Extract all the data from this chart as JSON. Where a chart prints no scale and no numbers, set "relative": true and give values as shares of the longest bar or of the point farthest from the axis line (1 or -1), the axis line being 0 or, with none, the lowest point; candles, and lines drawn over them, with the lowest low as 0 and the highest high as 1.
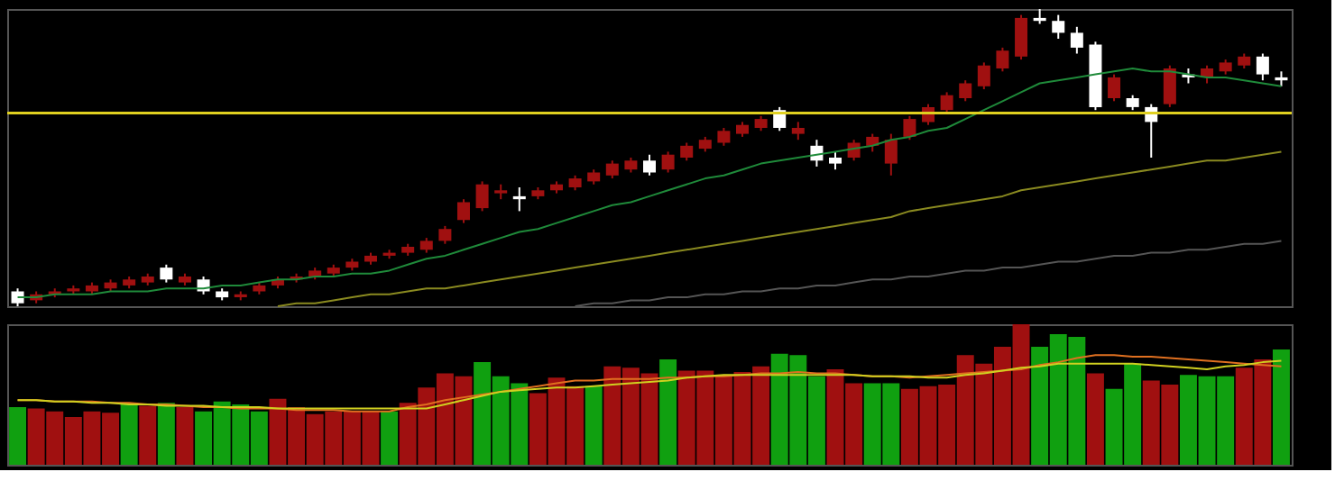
{
  "chart_data": [
    {
      "type": "candlestick",
      "relative": true,
      "categories": [
        null,
        null,
        null,
        null,
        null,
        null,
        null,
        null,
        null,
        null,
        null,
        null,
        null,
        null,
        null,
        null,
        null,
        null,
        null,
        null,
        null,
        null,
        null,
        null,
        null,
        null,
        null,
        null,
        null,
        null,
        null,
        null,
        null,
        null,
        null,
        null,
        null,
        null,
        null,
        null,
        null,
        null,
        null,
        null,
        null,
        null,
        null,
        null,
        null,
        null,
        null,
        null,
        null,
        null,
        null,
        null,
        null,
        null,
        null,
        null,
        null,
        null,
        null,
        null,
        null,
        null,
        null,
        null,
        null
      ],
      "ohlc": [
        [
          0.05,
          0.06,
          0,
          0.01
        ],
        [
          0.02,
          0.05,
          0.01,
          0.04
        ],
        [
          0.04,
          0.06,
          0.03,
          0.05
        ],
        [
          0.05,
          0.07,
          0.04,
          0.06
        ],
        [
          0.05,
          0.08,
          0.04,
          0.07
        ],
        [
          0.06,
          0.09,
          0.05,
          0.08
        ],
        [
          0.07,
          0.1,
          0.06,
          0.09
        ],
        [
          0.08,
          0.11,
          0.07,
          0.1
        ],
        [
          0.13,
          0.14,
          0.08,
          0.09
        ],
        [
          0.08,
          0.11,
          0.07,
          0.1
        ],
        [
          0.09,
          0.1,
          0.04,
          0.05
        ],
        [
          0.05,
          0.06,
          0.02,
          0.03
        ],
        [
          0.03,
          0.05,
          0.02,
          0.04
        ],
        [
          0.05,
          0.08,
          0.04,
          0.07
        ],
        [
          0.07,
          0.1,
          0.06,
          0.09
        ],
        [
          0.09,
          0.11,
          0.08,
          0.1
        ],
        [
          0.1,
          0.13,
          0.09,
          0.12
        ],
        [
          0.11,
          0.14,
          0.1,
          0.13
        ],
        [
          0.13,
          0.16,
          0.12,
          0.15
        ],
        [
          0.15,
          0.18,
          0.14,
          0.17
        ],
        [
          0.17,
          0.19,
          0.16,
          0.18
        ],
        [
          0.18,
          0.21,
          0.17,
          0.2
        ],
        [
          0.19,
          0.23,
          0.18,
          0.22
        ],
        [
          0.22,
          0.27,
          0.21,
          0.26
        ],
        [
          0.29,
          0.36,
          0.28,
          0.35
        ],
        [
          0.33,
          0.42,
          0.32,
          0.41
        ],
        [
          0.38,
          0.41,
          0.36,
          0.39
        ],
        [
          0.37,
          0.4,
          0.32,
          0.36
        ],
        [
          0.37,
          0.4,
          0.36,
          0.39
        ],
        [
          0.39,
          0.42,
          0.38,
          0.41
        ],
        [
          0.4,
          0.44,
          0.39,
          0.43
        ],
        [
          0.42,
          0.46,
          0.41,
          0.45
        ],
        [
          0.44,
          0.49,
          0.43,
          0.48
        ],
        [
          0.46,
          0.5,
          0.45,
          0.49
        ],
        [
          0.49,
          0.51,
          0.44,
          0.45
        ],
        [
          0.46,
          0.52,
          0.45,
          0.51
        ],
        [
          0.5,
          0.55,
          0.49,
          0.54
        ],
        [
          0.53,
          0.57,
          0.52,
          0.56
        ],
        [
          0.55,
          0.6,
          0.54,
          0.59
        ],
        [
          0.58,
          0.62,
          0.57,
          0.61
        ],
        [
          0.6,
          0.64,
          0.59,
          0.63
        ],
        [
          0.66,
          0.67,
          0.59,
          0.6
        ],
        [
          0.58,
          0.62,
          0.56,
          0.6
        ],
        [
          0.54,
          0.56,
          0.47,
          0.49
        ],
        [
          0.5,
          0.52,
          0.46,
          0.48
        ],
        [
          0.5,
          0.56,
          0.49,
          0.55
        ],
        [
          0.54,
          0.58,
          0.52,
          0.57
        ],
        [
          0.48,
          0.58,
          0.44,
          0.56
        ],
        [
          0.57,
          0.64,
          0.56,
          0.63
        ],
        [
          0.62,
          0.68,
          0.61,
          0.67
        ],
        [
          0.66,
          0.72,
          0.65,
          0.71
        ],
        [
          0.7,
          0.76,
          0.69,
          0.75
        ],
        [
          0.74,
          0.82,
          0.73,
          0.81
        ],
        [
          0.8,
          0.87,
          0.79,
          0.86
        ],
        [
          0.84,
          0.98,
          0.83,
          0.97
        ],
        [
          0.97,
          1,
          0.95,
          0.96
        ],
        [
          0.96,
          0.98,
          0.9,
          0.92
        ],
        [
          0.92,
          0.94,
          0.85,
          0.87
        ],
        [
          0.88,
          0.89,
          0.66,
          0.67
        ],
        [
          0.7,
          0.78,
          0.69,
          0.77
        ],
        [
          0.7,
          0.71,
          0.66,
          0.67
        ],
        [
          0.67,
          0.68,
          0.5,
          0.62
        ],
        [
          0.68,
          0.81,
          0.67,
          0.8
        ],
        [
          0.78,
          0.8,
          0.75,
          0.77
        ],
        [
          0.77,
          0.81,
          0.75,
          0.8
        ],
        [
          0.79,
          0.83,
          0.78,
          0.82
        ],
        [
          0.81,
          0.85,
          0.8,
          0.84
        ],
        [
          0.84,
          0.85,
          0.76,
          0.78
        ],
        [
          0.77,
          0.79,
          0.74,
          0.76
        ]
      ],
      "colors": [
        "#ffffff",
        "#a01010",
        "#a01010",
        "#a01010",
        "#a01010",
        "#a01010",
        "#a01010",
        "#a01010",
        "#ffffff",
        "#a01010",
        "#ffffff",
        "#ffffff",
        "#a01010",
        "#a01010",
        "#a01010",
        "#a01010",
        "#a01010",
        "#a01010",
        "#a01010",
        "#a01010",
        "#a01010",
        "#a01010",
        "#a01010",
        "#a01010",
        "#a01010",
        "#a01010",
        "#a01010",
        "#ffffff",
        "#a01010",
        "#a01010",
        "#a01010",
        "#a01010",
        "#a01010",
        "#a01010",
        "#ffffff",
        "#a01010",
        "#a01010",
        "#a01010",
        "#a01010",
        "#a01010",
        "#a01010",
        "#ffffff",
        "#a01010",
        "#ffffff",
        "#ffffff",
        "#a01010",
        "#a01010",
        "#a01010",
        "#a01010",
        "#a01010",
        "#a01010",
        "#a01010",
        "#a01010",
        "#a01010",
        "#a01010",
        "#ffffff",
        "#ffffff",
        "#ffffff",
        "#ffffff",
        "#a01010",
        "#ffffff",
        "#ffffff",
        "#a01010",
        "#ffffff",
        "#a01010",
        "#a01010",
        "#a01010",
        "#ffffff",
        "#ffffff"
      ],
      "series": [
        {
          "type": "line",
          "color": "#1f8a3a",
          "values": [
            0.03,
            0.03,
            0.04,
            0.04,
            0.04,
            0.05,
            0.05,
            0.05,
            0.06,
            0.06,
            0.06,
            0.07,
            0.07,
            0.08,
            0.09,
            0.09,
            0.1,
            0.1,
            0.11,
            0.11,
            0.12,
            0.14,
            0.16,
            0.17,
            0.19,
            0.21,
            0.23,
            0.25,
            0.26,
            0.28,
            0.3,
            0.32,
            0.34,
            0.35,
            0.37,
            0.39,
            0.41,
            0.43,
            0.44,
            0.46,
            0.48,
            0.49,
            0.5,
            0.51,
            0.52,
            0.53,
            0.54,
            0.56,
            0.57,
            0.59,
            0.6,
            0.63,
            0.66,
            0.69,
            0.72,
            0.75,
            0.76,
            0.77,
            0.78,
            0.79,
            0.8,
            0.79,
            0.79,
            0.78,
            0.77,
            0.77,
            0.76,
            0.75,
            0.74
          ]
        },
        {
          "type": "line",
          "color": "#8a8a20",
          "values": [
            null,
            null,
            null,
            null,
            null,
            null,
            null,
            null,
            null,
            null,
            null,
            null,
            null,
            null,
            0,
            0.01,
            0.01,
            0.02,
            0.03,
            0.04,
            0.04,
            0.05,
            0.06,
            0.06,
            0.07,
            0.08,
            0.09,
            0.1,
            0.11,
            0.12,
            0.13,
            0.14,
            0.15,
            0.16,
            0.17,
            0.18,
            0.19,
            0.2,
            0.21,
            0.22,
            0.23,
            0.24,
            0.25,
            0.26,
            0.27,
            0.28,
            0.29,
            0.3,
            0.32,
            0.33,
            0.34,
            0.35,
            0.36,
            0.37,
            0.39,
            0.4,
            0.41,
            0.42,
            0.43,
            0.44,
            0.45,
            0.46,
            0.47,
            0.48,
            0.49,
            0.49,
            0.5,
            0.51,
            0.52
          ]
        },
        {
          "type": "line",
          "color": "#555555",
          "values": [
            null,
            null,
            null,
            null,
            null,
            null,
            null,
            null,
            null,
            null,
            null,
            null,
            null,
            null,
            null,
            null,
            null,
            null,
            null,
            null,
            null,
            null,
            null,
            null,
            null,
            null,
            null,
            null,
            null,
            null,
            0,
            0.01,
            0.01,
            0.02,
            0.02,
            0.03,
            0.03,
            0.04,
            0.04,
            0.05,
            0.05,
            0.06,
            0.06,
            0.07,
            0.07,
            0.08,
            0.09,
            0.09,
            0.1,
            0.1,
            0.11,
            0.12,
            0.12,
            0.13,
            0.13,
            0.14,
            0.15,
            0.15,
            0.16,
            0.17,
            0.17,
            0.18,
            0.18,
            0.19,
            0.19,
            0.2,
            0.21,
            0.21,
            0.22
          ]
        }
      ],
      "ref_lines": [
        {
          "axis": "y",
          "value": 0.65,
          "color": "#e0d020"
        }
      ]
    },
    {
      "type": "bar",
      "relative": true,
      "categories": [
        null,
        null,
        null,
        null,
        null,
        null,
        null,
        null,
        null,
        null,
        null,
        null,
        null,
        null,
        null,
        null,
        null,
        null,
        null,
        null,
        null,
        null,
        null,
        null,
        null,
        null,
        null,
        null,
        null,
        null,
        null,
        null,
        null,
        null,
        null,
        null,
        null,
        null,
        null,
        null,
        null,
        null,
        null,
        null,
        null,
        null,
        null,
        null,
        null,
        null,
        null,
        null,
        null,
        null,
        null,
        null,
        null,
        null,
        null,
        null,
        null,
        null,
        null,
        null,
        null,
        null,
        null,
        null,
        null
      ],
      "values": [
        0.41,
        0.4,
        0.38,
        0.34,
        0.38,
        0.37,
        0.44,
        0.42,
        0.44,
        0.41,
        0.38,
        0.45,
        0.43,
        0.38,
        0.47,
        0.41,
        0.36,
        0.38,
        0.38,
        0.38,
        0.38,
        0.44,
        0.55,
        0.65,
        0.63,
        0.73,
        0.63,
        0.58,
        0.51,
        0.62,
        0.56,
        0.56,
        0.7,
        0.69,
        0.65,
        0.75,
        0.67,
        0.67,
        0.64,
        0.66,
        0.7,
        0.79,
        0.78,
        0.63,
        0.68,
        0.58,
        0.58,
        0.58,
        0.54,
        0.56,
        0.57,
        0.78,
        0.72,
        0.84,
        1,
        0.84,
        0.93,
        0.91,
        0.65,
        0.54,
        0.72,
        0.6,
        0.57,
        0.64,
        0.63,
        0.63,
        0.69,
        0.75,
        0.82
      ],
      "colors": [
        "#10a010",
        "#a01010",
        "#a01010",
        "#a01010",
        "#a01010",
        "#a01010",
        "#10a010",
        "#a01010",
        "#10a010",
        "#a01010",
        "#10a010",
        "#10a010",
        "#10a010",
        "#10a010",
        "#a01010",
        "#a01010",
        "#a01010",
        "#a01010",
        "#a01010",
        "#a01010",
        "#10a010",
        "#a01010",
        "#a01010",
        "#a01010",
        "#a01010",
        "#10a010",
        "#10a010",
        "#10a010",
        "#a01010",
        "#a01010",
        "#a01010",
        "#10a010",
        "#a01010",
        "#a01010",
        "#a01010",
        "#10a010",
        "#a01010",
        "#a01010",
        "#a01010",
        "#a01010",
        "#a01010",
        "#10a010",
        "#10a010",
        "#10a010",
        "#a01010",
        "#a01010",
        "#10a010",
        "#10a010",
        "#a01010",
        "#a01010",
        "#a01010",
        "#a01010",
        "#a01010",
        "#a01010",
        "#a01010",
        "#10a010",
        "#10a010",
        "#10a010",
        "#a01010",
        "#10a010",
        "#10a010",
        "#a01010",
        "#a01010",
        "#10a010",
        "#10a010",
        "#10a010",
        "#a01010",
        "#a01010",
        "#10a010"
      ],
      "series": [
        {
          "type": "line",
          "color": "#e07020",
          "values": [
            0.46,
            0.46,
            0.45,
            0.45,
            0.45,
            0.44,
            0.44,
            0.43,
            0.43,
            0.42,
            0.41,
            0.41,
            0.4,
            0.4,
            0.4,
            0.39,
            0.39,
            0.39,
            0.38,
            0.38,
            0.38,
            0.41,
            0.43,
            0.46,
            0.48,
            0.5,
            0.52,
            0.54,
            0.56,
            0.58,
            0.6,
            0.6,
            0.61,
            0.61,
            0.61,
            0.62,
            0.62,
            0.63,
            0.63,
            0.64,
            0.65,
            0.65,
            0.66,
            0.65,
            0.65,
            0.64,
            0.63,
            0.63,
            0.62,
            0.63,
            0.64,
            0.65,
            0.66,
            0.67,
            0.68,
            0.71,
            0.73,
            0.76,
            0.78,
            0.78,
            0.77,
            0.77,
            0.76,
            0.75,
            0.74,
            0.73,
            0.72,
            0.71,
            0.7
          ]
        },
        {
          "type": "line",
          "color": "#d0d020",
          "values": [
            0.46,
            0.46,
            0.45,
            0.45,
            0.44,
            0.44,
            0.43,
            0.43,
            0.42,
            0.42,
            0.42,
            0.41,
            0.41,
            0.41,
            0.4,
            0.4,
            0.4,
            0.4,
            0.4,
            0.4,
            0.4,
            0.4,
            0.4,
            0.43,
            0.46,
            0.49,
            0.52,
            0.53,
            0.54,
            0.55,
            0.55,
            0.56,
            0.57,
            0.58,
            0.59,
            0.6,
            0.62,
            0.63,
            0.64,
            0.64,
            0.64,
            0.64,
            0.64,
            0.64,
            0.64,
            0.64,
            0.63,
            0.63,
            0.63,
            0.62,
            0.62,
            0.64,
            0.65,
            0.67,
            0.69,
            0.7,
            0.72,
            0.72,
            0.72,
            0.72,
            0.72,
            0.71,
            0.7,
            0.69,
            0.68,
            0.7,
            0.71,
            0.73,
            0.74
          ]
        }
      ]
    }
  ]
}
